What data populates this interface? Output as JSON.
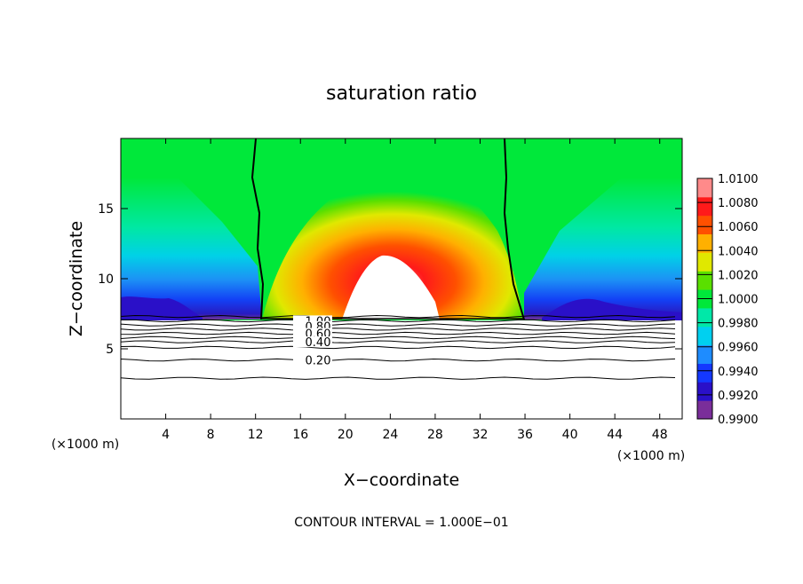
{
  "chart_data": {
    "type": "heatmap",
    "title": "saturation ratio",
    "xlabel": "X−coordinate",
    "ylabel": "Z−coordinate",
    "x_unit_left": "(×1000 m)",
    "x_unit_right": "(×1000 m)",
    "footer": "CONTOUR INTERVAL = 1.000E−01",
    "xlim": [
      0,
      50
    ],
    "ylim": [
      0,
      20
    ],
    "x_ticks": [
      "4",
      "8",
      "12",
      "16",
      "20",
      "24",
      "28",
      "32",
      "36",
      "40",
      "44",
      "48"
    ],
    "y_ticks": [
      "5",
      "10",
      "15"
    ],
    "colorbar": {
      "labels": [
        "1.0100",
        "1.0080",
        "1.0060",
        "1.0040",
        "1.0020",
        "1.0000",
        "0.9980",
        "0.9960",
        "0.9940",
        "0.9920",
        "0.9900"
      ],
      "colors": [
        "#7a2e9a",
        "#2a10c8",
        "#1438ff",
        "#1e8cff",
        "#00d0f0",
        "#00e8a8",
        "#00e83a",
        "#5ae000",
        "#e0e800",
        "#ffb000",
        "#ff5000",
        "#ff1a1a",
        "#ff8a8a"
      ]
    },
    "contour_labels": [
      {
        "value": "1.00",
        "z": 7.0
      },
      {
        "value": "0.80",
        "z": 6.6
      },
      {
        "value": "0.60",
        "z": 6.1
      },
      {
        "value": "0.40",
        "z": 5.5
      },
      {
        "value": "0.20",
        "z": 4.2
      }
    ],
    "contour_levels_z": [
      7.3,
      7.0,
      6.7,
      6.4,
      6.1,
      5.8,
      5.5,
      5.1,
      4.2,
      2.9
    ],
    "saturated_boundary_x": [
      12.2,
      35.9
    ],
    "supersaturation_peak": {
      "x": 22.5,
      "z": 13
    },
    "cloud_base_z": 7.3
  }
}
